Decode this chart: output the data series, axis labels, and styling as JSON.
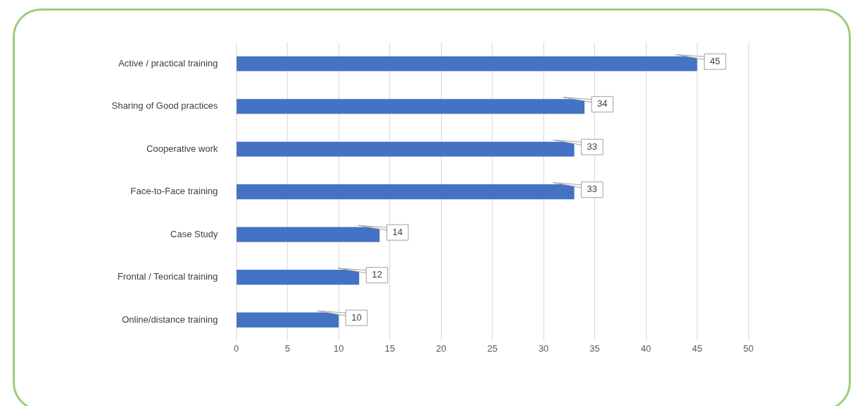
{
  "chart_data": {
    "type": "bar",
    "orientation": "horizontal",
    "categories": [
      "Active / practical training",
      "Sharing of Good practices",
      "Cooperative work",
      "Face-to-Face training",
      "Case Study",
      "Frontal / Teorical training",
      "Online/distance training"
    ],
    "values": [
      45,
      34,
      33,
      33,
      14,
      12,
      10
    ],
    "color": "#4472c4",
    "xlim": [
      0,
      50
    ],
    "xticks": [
      0,
      5,
      10,
      15,
      20,
      25,
      30,
      35,
      40,
      45,
      50
    ],
    "grid": "x",
    "data_labels": true
  }
}
